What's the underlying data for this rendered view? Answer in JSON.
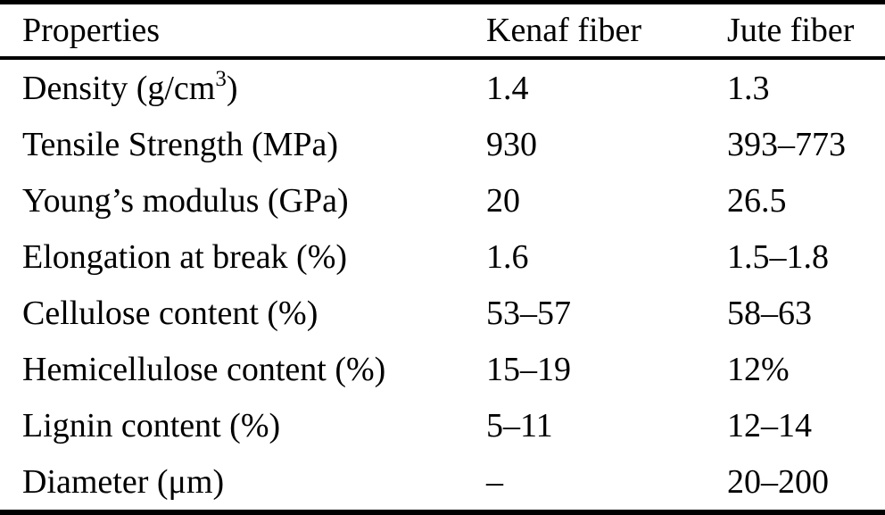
{
  "table": {
    "header": {
      "properties": "Properties",
      "kenaf": "Kenaf fiber",
      "jute": "Jute fiber"
    },
    "rows": [
      {
        "property_base": "Density (g/cm",
        "property_sup": "3",
        "property_close": ")",
        "kenaf": "1.4",
        "jute": "1.3"
      },
      {
        "property": "Tensile Strength (MPa)",
        "kenaf": "930",
        "jute": "393–773"
      },
      {
        "property": "Young’s modulus (GPa)",
        "kenaf": "20",
        "jute": "26.5"
      },
      {
        "property": "Elongation at break (%)",
        "kenaf": "1.6",
        "jute": "1.5–1.8"
      },
      {
        "property": "Cellulose content (%)",
        "kenaf": "53–57",
        "jute": "58–63"
      },
      {
        "property": "Hemicellulose content (%)",
        "kenaf": "15–19",
        "jute": "12%"
      },
      {
        "property": "Lignin content (%)",
        "kenaf": "5–11",
        "jute": "12–14"
      },
      {
        "property": "Diameter (μm)",
        "kenaf": "–",
        "jute": "20–200"
      }
    ]
  }
}
